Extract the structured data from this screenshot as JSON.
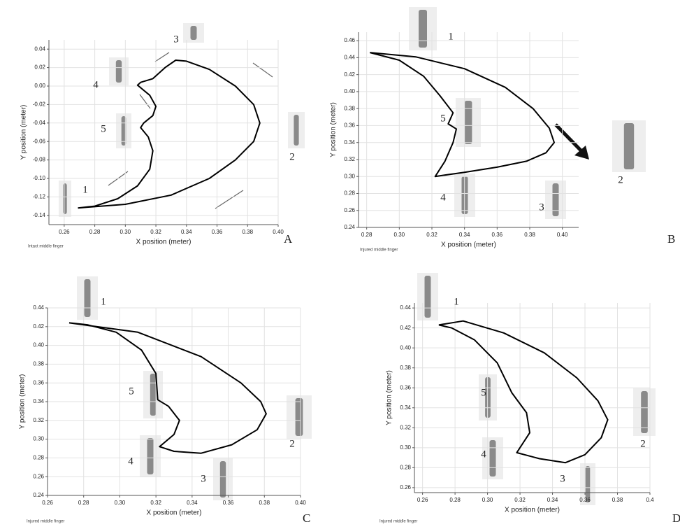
{
  "chart_data": [
    {
      "type": "line",
      "label": "A",
      "note": "Intact middle finger",
      "x_label": "X position (meter)",
      "y_label": "Y position (meter)",
      "color": "#000000",
      "grid": true,
      "annotations": [
        "1",
        "2",
        "3",
        "4",
        "5"
      ],
      "xlim": [
        0.25,
        0.4
      ],
      "ylim": [
        -0.15,
        0.05
      ],
      "xticks": [
        0.26,
        0.28,
        {
          "value": 0.3,
          "label": "0.30"
        },
        0.32,
        0.34,
        0.36,
        0.38,
        {
          "value": 0.4,
          "label": "0.40"
        }
      ],
      "yticks": [
        0.04,
        0.02,
        {
          "value": 0,
          "label": "0.00"
        },
        -0.02,
        -0.04,
        -0.06,
        -0.08,
        {
          "value": -0.1,
          "label": "-0.10"
        },
        -0.12,
        -0.14
      ],
      "x": [
        0.269,
        0.3,
        0.33,
        0.355,
        0.372,
        0.384,
        0.388,
        0.384,
        0.372,
        0.355,
        0.34,
        0.333,
        0.326,
        0.318,
        0.31,
        0.308,
        0.316,
        0.32,
        0.318,
        0.312,
        0.31,
        0.315,
        0.318,
        0.316,
        0.308,
        0.295,
        0.28,
        0.269
      ],
      "values": [
        -0.132,
        -0.128,
        -0.118,
        -0.1,
        -0.08,
        -0.06,
        -0.04,
        -0.02,
        0.0,
        0.018,
        0.027,
        0.028,
        0.02,
        0.008,
        0.004,
        0.001,
        -0.01,
        -0.022,
        -0.032,
        -0.04,
        -0.045,
        -0.055,
        -0.07,
        -0.09,
        -0.108,
        -0.122,
        -0.13,
        -0.132
      ]
    },
    {
      "type": "line",
      "label": "B",
      "note": "Injured middle finger",
      "x_label": "X position (meter)",
      "y_label": "Y position (meter)",
      "color": "#000000",
      "grid": true,
      "annotations": [
        "1",
        "2",
        "3",
        "4",
        "5"
      ],
      "xlim": [
        0.275,
        0.41
      ],
      "ylim": [
        0.24,
        0.47
      ],
      "xticks": [
        0.28,
        {
          "value": 0.3,
          "label": "0.30"
        },
        0.32,
        0.34,
        0.36,
        0.38,
        {
          "value": 0.4,
          "label": "0.40"
        }
      ],
      "yticks": [
        0.24,
        0.26,
        0.28,
        {
          "value": 0.3,
          "label": "0.30"
        },
        0.32,
        0.34,
        0.36,
        0.38,
        {
          "value": 0.4,
          "label": "0.40"
        },
        0.42,
        0.44,
        0.46
      ],
      "x": [
        0.282,
        0.31,
        0.34,
        0.365,
        0.382,
        0.392,
        0.395,
        0.39,
        0.378,
        0.36,
        0.34,
        0.322,
        0.328,
        0.333,
        0.335,
        0.33,
        0.333,
        0.325,
        0.315,
        0.3,
        0.282
      ],
      "values": [
        0.446,
        0.441,
        0.427,
        0.405,
        0.38,
        0.357,
        0.34,
        0.328,
        0.318,
        0.311,
        0.305,
        0.3,
        0.318,
        0.34,
        0.356,
        0.362,
        0.375,
        0.395,
        0.418,
        0.437,
        0.446
      ]
    },
    {
      "type": "line",
      "label": "C",
      "note": "Injured middle finger",
      "x_label": "X position (meter)",
      "y_label": "Y position (meter)",
      "color": "#000000",
      "grid": true,
      "annotations": [
        "1",
        "2",
        "3",
        "4",
        "5"
      ],
      "xlim": [
        0.26,
        0.4
      ],
      "ylim": [
        0.24,
        0.44
      ],
      "xticks": [
        0.26,
        0.28,
        {
          "value": 0.3,
          "label": "0.30"
        },
        0.32,
        0.34,
        0.36,
        0.38,
        {
          "value": 0.4,
          "label": "0.40"
        }
      ],
      "yticks": [
        0.24,
        0.26,
        0.28,
        {
          "value": 0.3,
          "label": "0.30"
        },
        0.32,
        0.34,
        0.36,
        0.38,
        {
          "value": 0.4,
          "label": "0.40"
        },
        0.42,
        0.44
      ],
      "x": [
        0.272,
        0.31,
        0.345,
        0.367,
        0.378,
        0.381,
        0.376,
        0.362,
        0.345,
        0.33,
        0.322,
        0.33,
        0.333,
        0.327,
        0.321,
        0.32,
        0.312,
        0.298,
        0.282,
        0.272
      ],
      "values": [
        0.424,
        0.414,
        0.388,
        0.36,
        0.34,
        0.327,
        0.31,
        0.294,
        0.285,
        0.287,
        0.292,
        0.305,
        0.32,
        0.335,
        0.342,
        0.37,
        0.395,
        0.414,
        0.422,
        0.424
      ]
    },
    {
      "type": "line",
      "label": "D",
      "note": "Injured middle finger",
      "x_label": "X position (meter)",
      "y_label": "Y position (meter)",
      "color": "#000000",
      "grid": true,
      "annotations": [
        "1",
        "2",
        "3",
        "4",
        "5"
      ],
      "xlim": [
        0.255,
        0.4
      ],
      "ylim": [
        0.255,
        0.445
      ],
      "xticks": [
        0.26,
        0.28,
        {
          "value": 0.3,
          "label": "0.30"
        },
        0.32,
        0.34,
        0.36,
        0.38,
        0.4
      ],
      "yticks": [
        0.26,
        0.28,
        {
          "value": 0.3,
          "label": "0.30"
        },
        0.32,
        0.34,
        0.36,
        0.38,
        {
          "value": 0.4,
          "label": "0.40"
        },
        0.42,
        0.44
      ],
      "x": [
        0.27,
        0.285,
        0.31,
        0.335,
        0.355,
        0.368,
        0.374,
        0.37,
        0.36,
        0.348,
        0.332,
        0.318,
        0.326,
        0.324,
        0.315,
        0.306,
        0.292,
        0.278,
        0.27
      ],
      "values": [
        0.423,
        0.427,
        0.415,
        0.395,
        0.37,
        0.347,
        0.328,
        0.31,
        0.293,
        0.285,
        0.289,
        0.295,
        0.315,
        0.335,
        0.355,
        0.385,
        0.408,
        0.42,
        0.423
      ]
    }
  ]
}
